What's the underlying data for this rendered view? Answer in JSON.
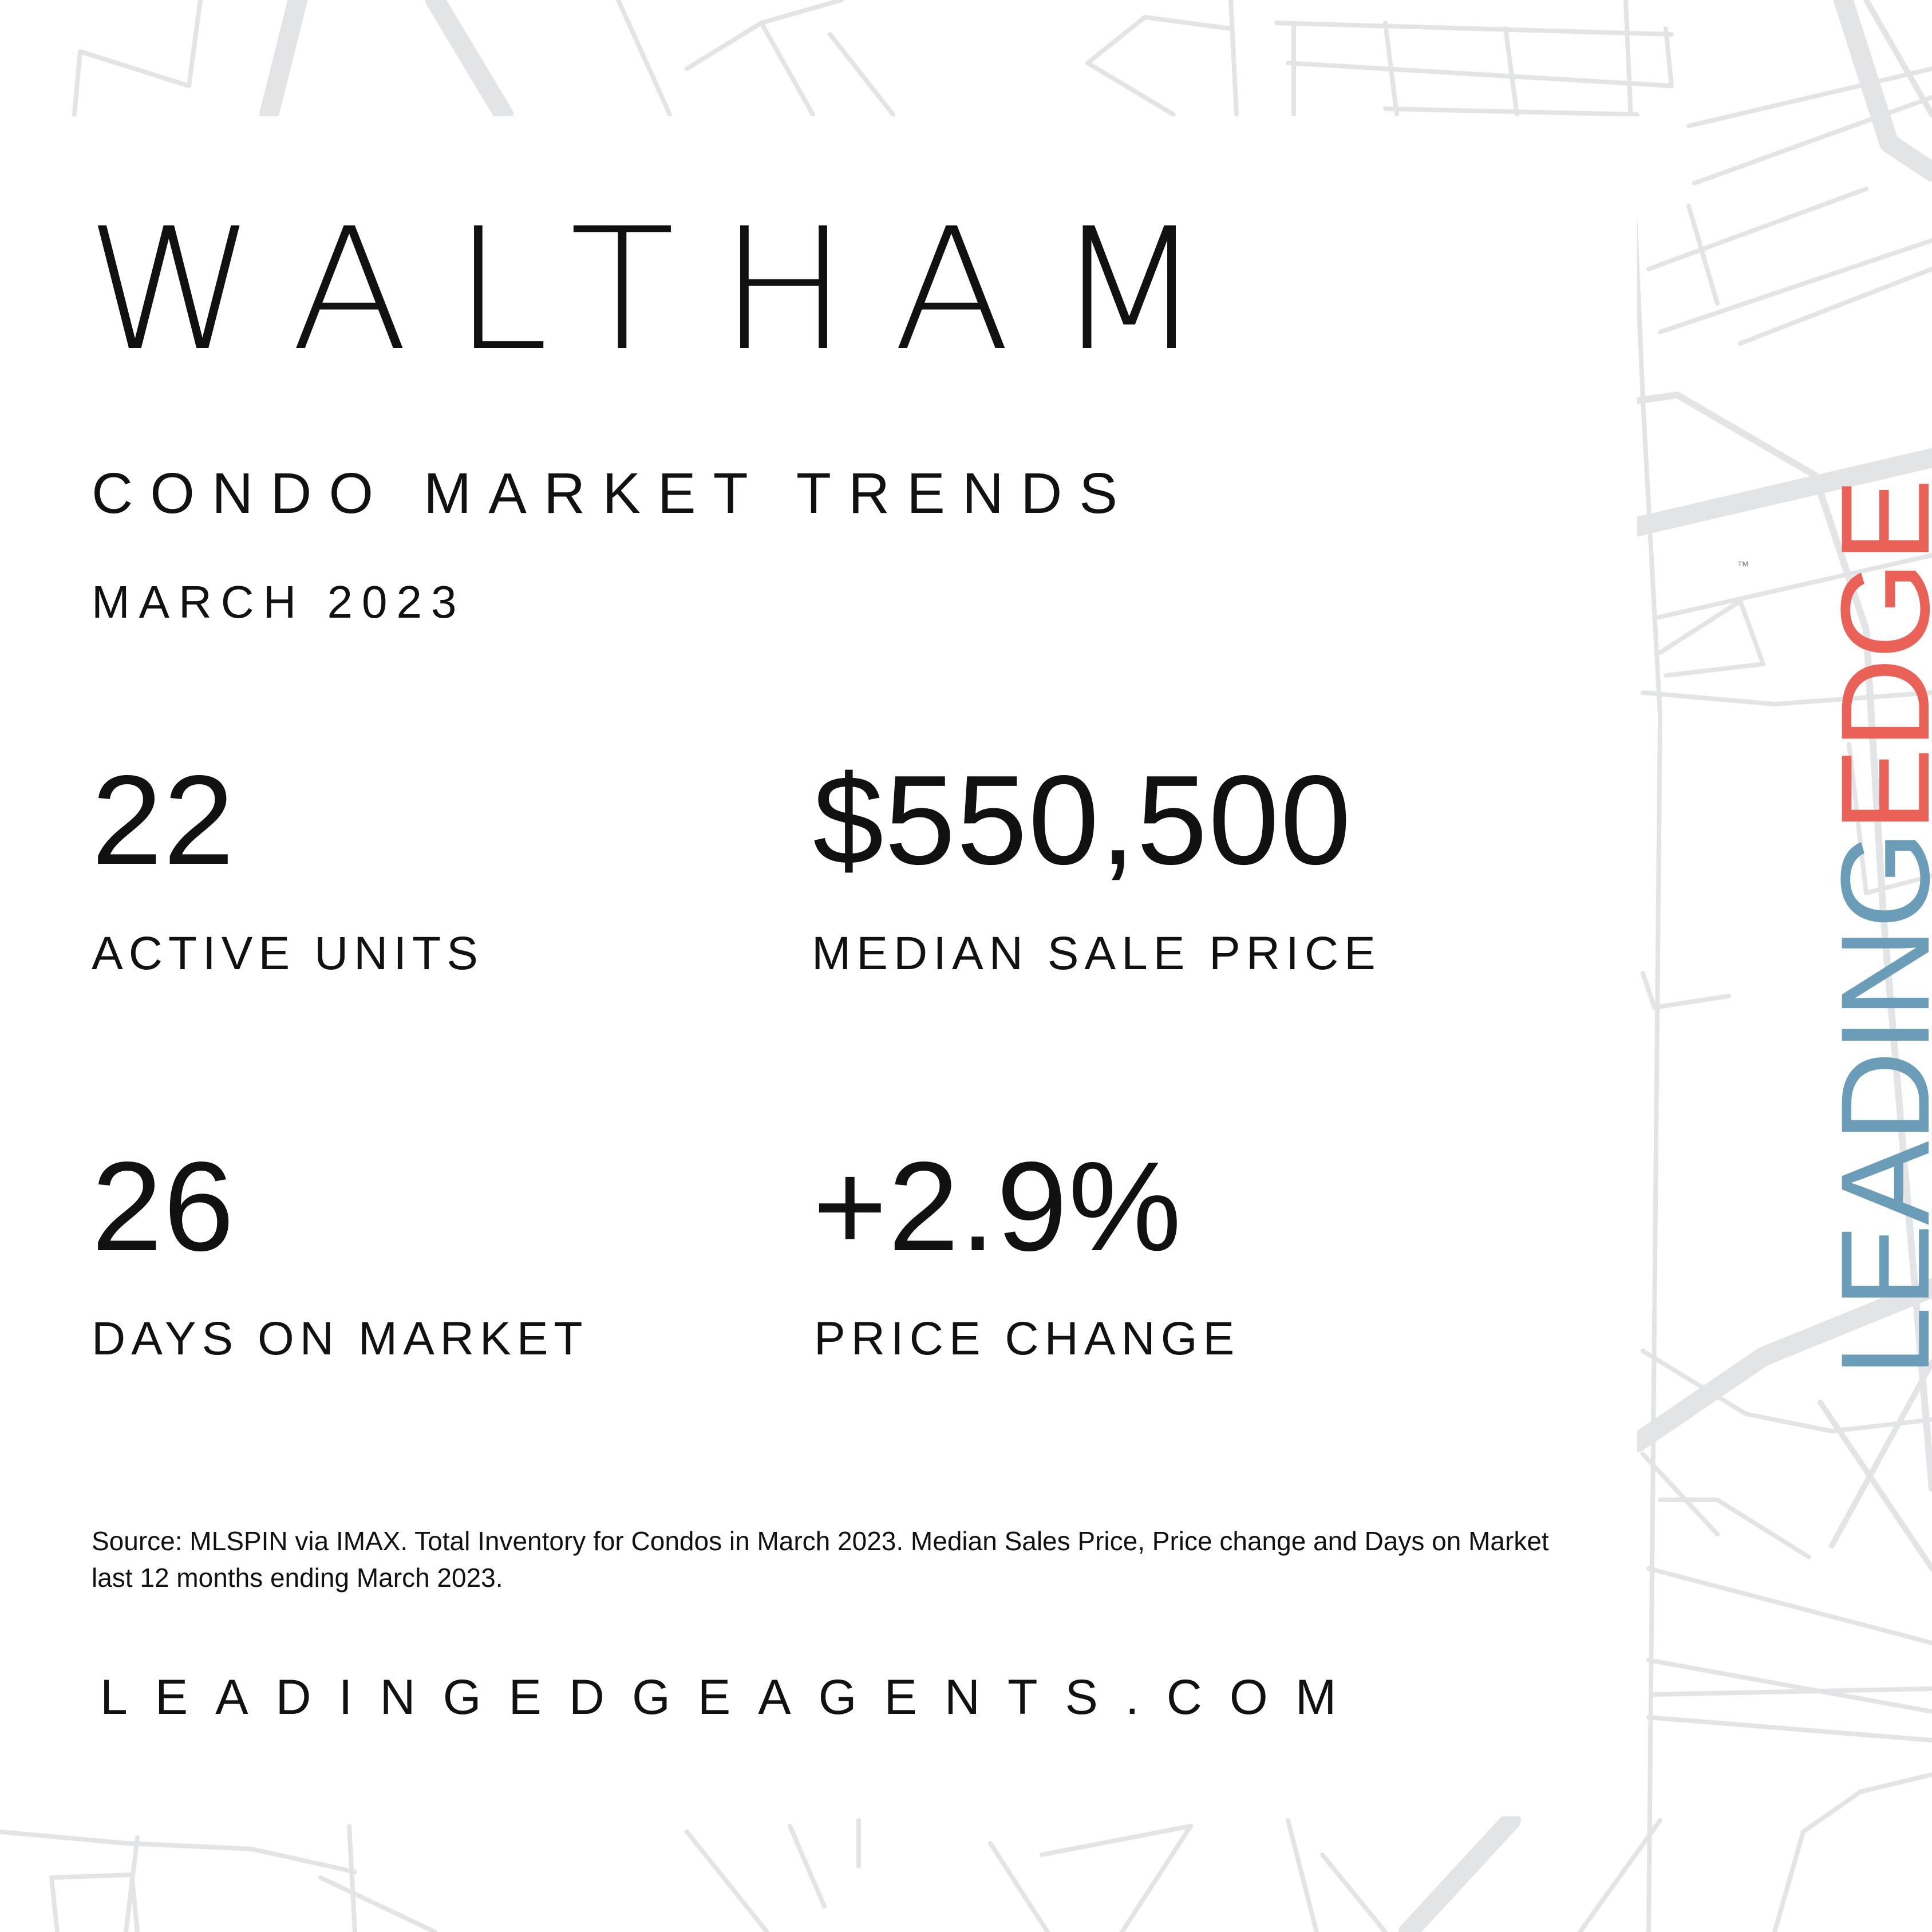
{
  "title": "WALTHAM",
  "subtitle": "CONDO MARKET TRENDS",
  "date": "MARCH 2023",
  "stats": [
    {
      "value": "22",
      "label": "ACTIVE UNITS"
    },
    {
      "value": "$550,500",
      "label": "MEDIAN SALE PRICE"
    },
    {
      "value": "26",
      "label": "DAYS ON MARKET"
    },
    {
      "value": "+2.9%",
      "label": "PRICE CHANGE"
    }
  ],
  "source": "Source: MLSPIN via IMAX. Total Inventory for Condos in March 2023. Median Sales Price, Price change and Days on Market last 12 months ending March 2023.",
  "website": "LEADINGEDGEAGENTS.COM",
  "logo": {
    "part1": "LEADING",
    "part2": "EDGE",
    "trademark": "™",
    "color_leading": "#6b9db8",
    "color_edge": "#ea6158"
  },
  "map_color": "#e3e4e6"
}
